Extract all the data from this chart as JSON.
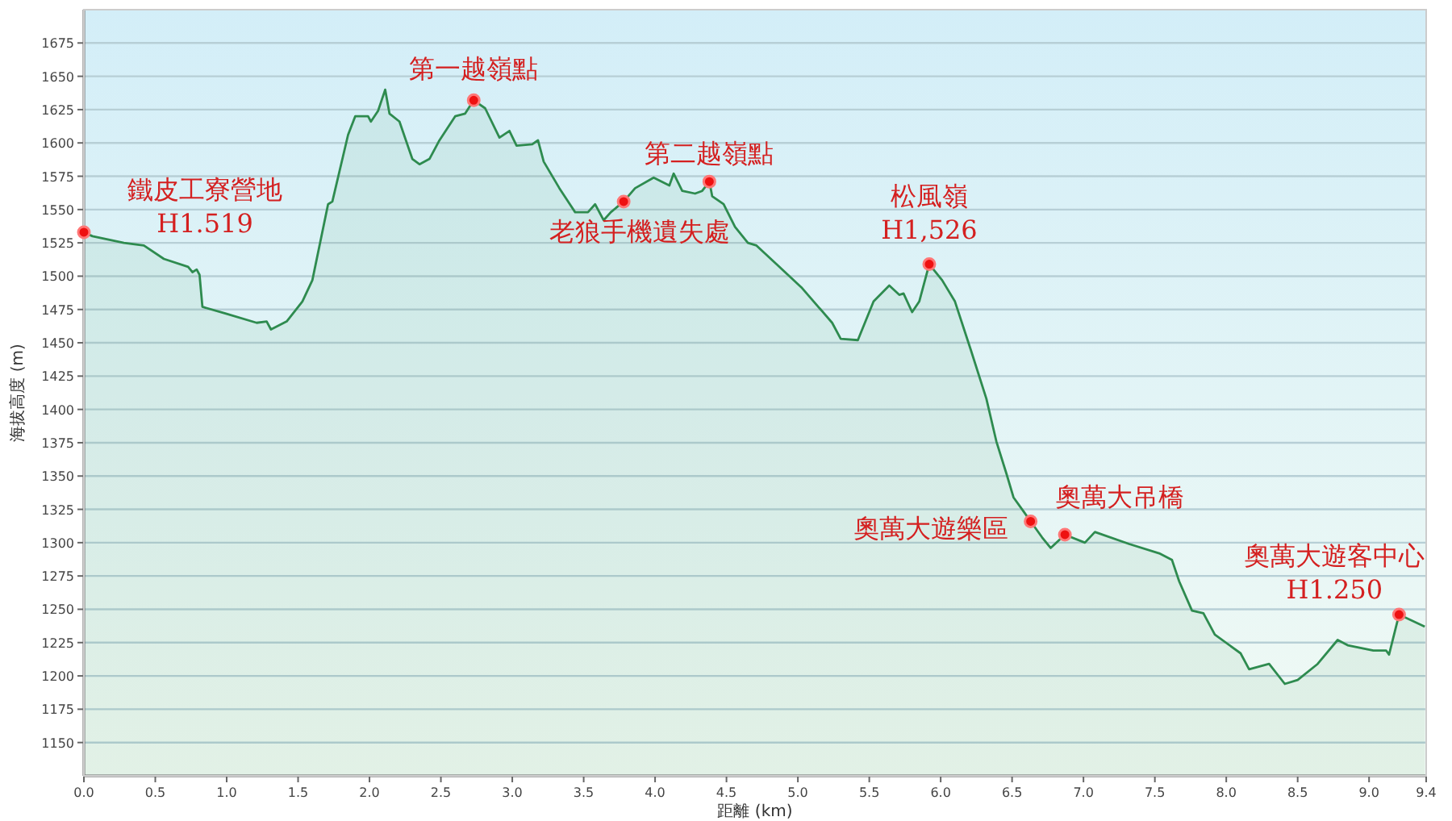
{
  "chart_data": {
    "type": "area",
    "xlabel": "距離 (km)",
    "ylabel": "海拔高度 (m)",
    "series": [
      {
        "color": "#2e8b4f",
        "x": [
          0,
          0.06,
          0.28,
          0.42,
          0.56,
          0.73,
          0.76,
          0.79,
          0.81,
          0.83,
          0.99,
          1.21,
          1.28,
          1.31,
          1.42,
          1.53,
          1.6,
          1.71,
          1.74,
          1.85,
          1.9,
          1.99,
          2.01,
          2.06,
          2.11,
          2.14,
          2.21,
          2.3,
          2.35,
          2.42,
          2.49,
          2.6,
          2.67,
          2.73,
          2.81,
          2.91,
          2.98,
          3.03,
          3.14,
          3.18,
          3.22,
          3.33,
          3.44,
          3.53,
          3.58,
          3.64,
          3.69,
          3.78,
          3.86,
          3.99,
          4.1,
          4.13,
          4.19,
          4.28,
          4.33,
          4.38,
          4.4,
          4.48,
          4.56,
          4.65,
          4.71,
          4.85,
          5.03,
          5.24,
          5.3,
          5.42,
          5.53,
          5.64,
          5.71,
          5.74,
          5.8,
          5.85,
          5.92,
          6.01,
          6.1,
          6.21,
          6.32,
          6.39,
          6.46,
          6.51,
          6.63,
          6.71,
          6.77,
          6.87,
          7.01,
          7.08,
          7.32,
          7.53,
          7.62,
          7.67,
          7.76,
          7.84,
          7.92,
          8.1,
          8.16,
          8.3,
          8.41,
          8.5,
          8.64,
          8.78,
          8.85,
          9.03,
          9.12,
          9.14,
          9.21,
          9.39
        ],
        "values": [
          1533,
          1530,
          1525,
          1523,
          1513,
          1507,
          1503,
          1505,
          1501,
          1477,
          1472,
          1465,
          1466,
          1460,
          1466,
          1481,
          1497,
          1554,
          1556,
          1606,
          1620,
          1620,
          1616,
          1624,
          1640,
          1622,
          1616,
          1588,
          1584,
          1588,
          1602,
          1620,
          1622,
          1632,
          1626,
          1604,
          1609,
          1598,
          1599,
          1602,
          1586,
          1566,
          1548,
          1548,
          1554,
          1542,
          1548,
          1556,
          1566,
          1574,
          1568,
          1577,
          1564,
          1562,
          1564,
          1571,
          1560,
          1554,
          1537,
          1525,
          1523,
          1509,
          1491,
          1465,
          1453,
          1452,
          1481,
          1493,
          1486,
          1487,
          1473,
          1481,
          1509,
          1497,
          1481,
          1445,
          1408,
          1376,
          1352,
          1334,
          1316,
          1304,
          1296,
          1306,
          1300,
          1308,
          1299,
          1292,
          1287,
          1271,
          1249,
          1247,
          1231,
          1217,
          1205,
          1209,
          1194,
          1197,
          1209,
          1227,
          1223,
          1219,
          1219,
          1216,
          1246,
          1237
        ]
      }
    ],
    "xlim": [
      0,
      9.4
    ],
    "xticks": [
      {
        "value": 0,
        "label": "0.0"
      },
      0.5,
      {
        "value": 1,
        "label": "1.0"
      },
      1.5,
      {
        "value": 2,
        "label": "2.0"
      },
      2.5,
      {
        "value": 3,
        "label": "3.0"
      },
      3.5,
      {
        "value": 4,
        "label": "4.0"
      },
      4.5,
      {
        "value": 5,
        "label": "5.0"
      },
      5.5,
      {
        "value": 6,
        "label": "6.0"
      },
      6.5,
      {
        "value": 7,
        "label": "7.0"
      },
      7.5,
      {
        "value": 8,
        "label": "8.0"
      },
      8.5,
      {
        "value": 9,
        "label": "9.0"
      },
      9.4
    ],
    "ylim": [
      1125,
      1700
    ],
    "yticks": [
      1150,
      1175,
      1200,
      1225,
      1250,
      1275,
      1300,
      1325,
      1350,
      1375,
      1400,
      1425,
      1450,
      1475,
      1500,
      1525,
      1550,
      1575,
      1600,
      1625,
      1650,
      1675
    ],
    "grid": "y",
    "annotations": [
      {
        "text": "鐵皮工寮營地\nH1.519",
        "x": 0,
        "y": 1533
      },
      {
        "text": "第一越嶺點",
        "x": 2.73,
        "y": 1632
      },
      {
        "text": "老狼手機遺失處",
        "x": 3.78,
        "y": 1556
      },
      {
        "text": "第二越嶺點",
        "x": 4.38,
        "y": 1571
      },
      {
        "text": "松風嶺\nH1,526",
        "x": 5.92,
        "y": 1509
      },
      {
        "text": "奧萬大遊樂區",
        "x": 6.63,
        "y": 1316
      },
      {
        "text": "奧萬大吊橋",
        "x": 6.87,
        "y": 1306
      },
      {
        "text": "奧萬大遊客中心\nH1.250",
        "x": 9.21,
        "y": 1246
      }
    ]
  }
}
